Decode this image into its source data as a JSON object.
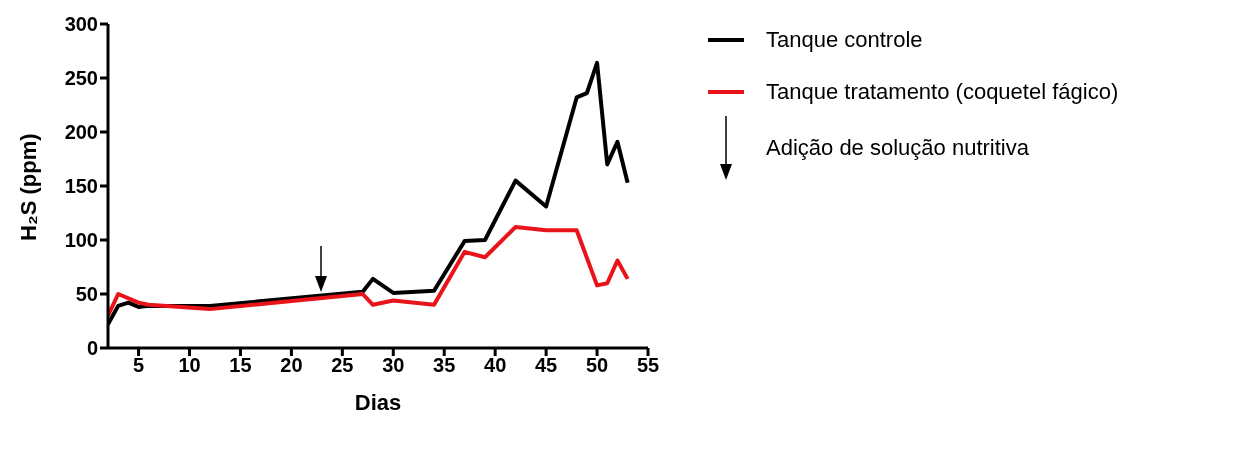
{
  "chart_data": {
    "type": "line",
    "xlabel": "Dias",
    "ylabel": "H₂S (ppm)",
    "xlim": [
      2,
      55
    ],
    "xticks": [
      5,
      10,
      15,
      20,
      25,
      30,
      35,
      40,
      45,
      50,
      55
    ],
    "ylim": [
      0,
      300
    ],
    "yticks": [
      0,
      50,
      100,
      150,
      200,
      250,
      300
    ],
    "grid": false,
    "legend": "right",
    "marker": "none",
    "line_style": "solid",
    "series": [
      {
        "name": "Tanque controle",
        "color": "#000000",
        "x": [
          2,
          3,
          4,
          5,
          6,
          12,
          27,
          28,
          30,
          34,
          37,
          39,
          42,
          45,
          48,
          49,
          50,
          51,
          52,
          53
        ],
        "values": [
          22,
          39,
          42,
          38,
          39,
          39,
          52,
          64,
          51,
          53,
          99,
          100,
          155,
          131,
          232,
          236,
          264,
          170,
          191,
          153
        ]
      },
      {
        "name": "Tanque tratamento (coquetel fágico)",
        "color": "#e8141a",
        "x": [
          2,
          3,
          5,
          6,
          12,
          27,
          28,
          30,
          34,
          37,
          39,
          42,
          45,
          48,
          50,
          51,
          52,
          53
        ],
        "values": [
          30,
          50,
          42,
          40,
          36,
          50,
          40,
          44,
          40,
          89,
          84,
          112,
          109,
          109,
          58,
          60,
          81,
          64
        ]
      }
    ],
    "annotations": [
      "Adição de solução nutritiva"
    ]
  }
}
